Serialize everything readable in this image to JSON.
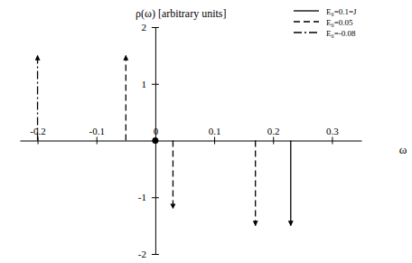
{
  "chart_data": {
    "type": "stem",
    "x_label": "ω",
    "y_label": "ρ(ω) [arbitrary units]",
    "xlim": [
      -0.23,
      0.35
    ],
    "xticks": [
      -0.2,
      -0.1,
      0,
      0.1,
      0.2,
      0.3
    ],
    "ylim": [
      -2,
      2
    ],
    "yticks": [
      -2,
      -1,
      1,
      2
    ],
    "legend": "top-right",
    "series": [
      {
        "name": "E₀=0.1=J",
        "color": "#000000",
        "line_style": "solid",
        "x": [
          0.23
        ],
        "values": [
          -1.5
        ]
      },
      {
        "name": "E₀=0.05",
        "color": "#000000",
        "line_style": "dashed",
        "x": [
          -0.05,
          0.03,
          0.17
        ],
        "values": [
          1.5,
          -1.2,
          -1.5
        ]
      },
      {
        "name": "E₀=-0.08",
        "color": "#000000",
        "line_style": "dashdot",
        "x": [
          -0.2
        ],
        "values": [
          1.5
        ]
      },
      {
        "type": "scatter",
        "marker": "circle",
        "color": "#000000",
        "x": [
          0
        ],
        "values": [
          0
        ]
      }
    ]
  }
}
